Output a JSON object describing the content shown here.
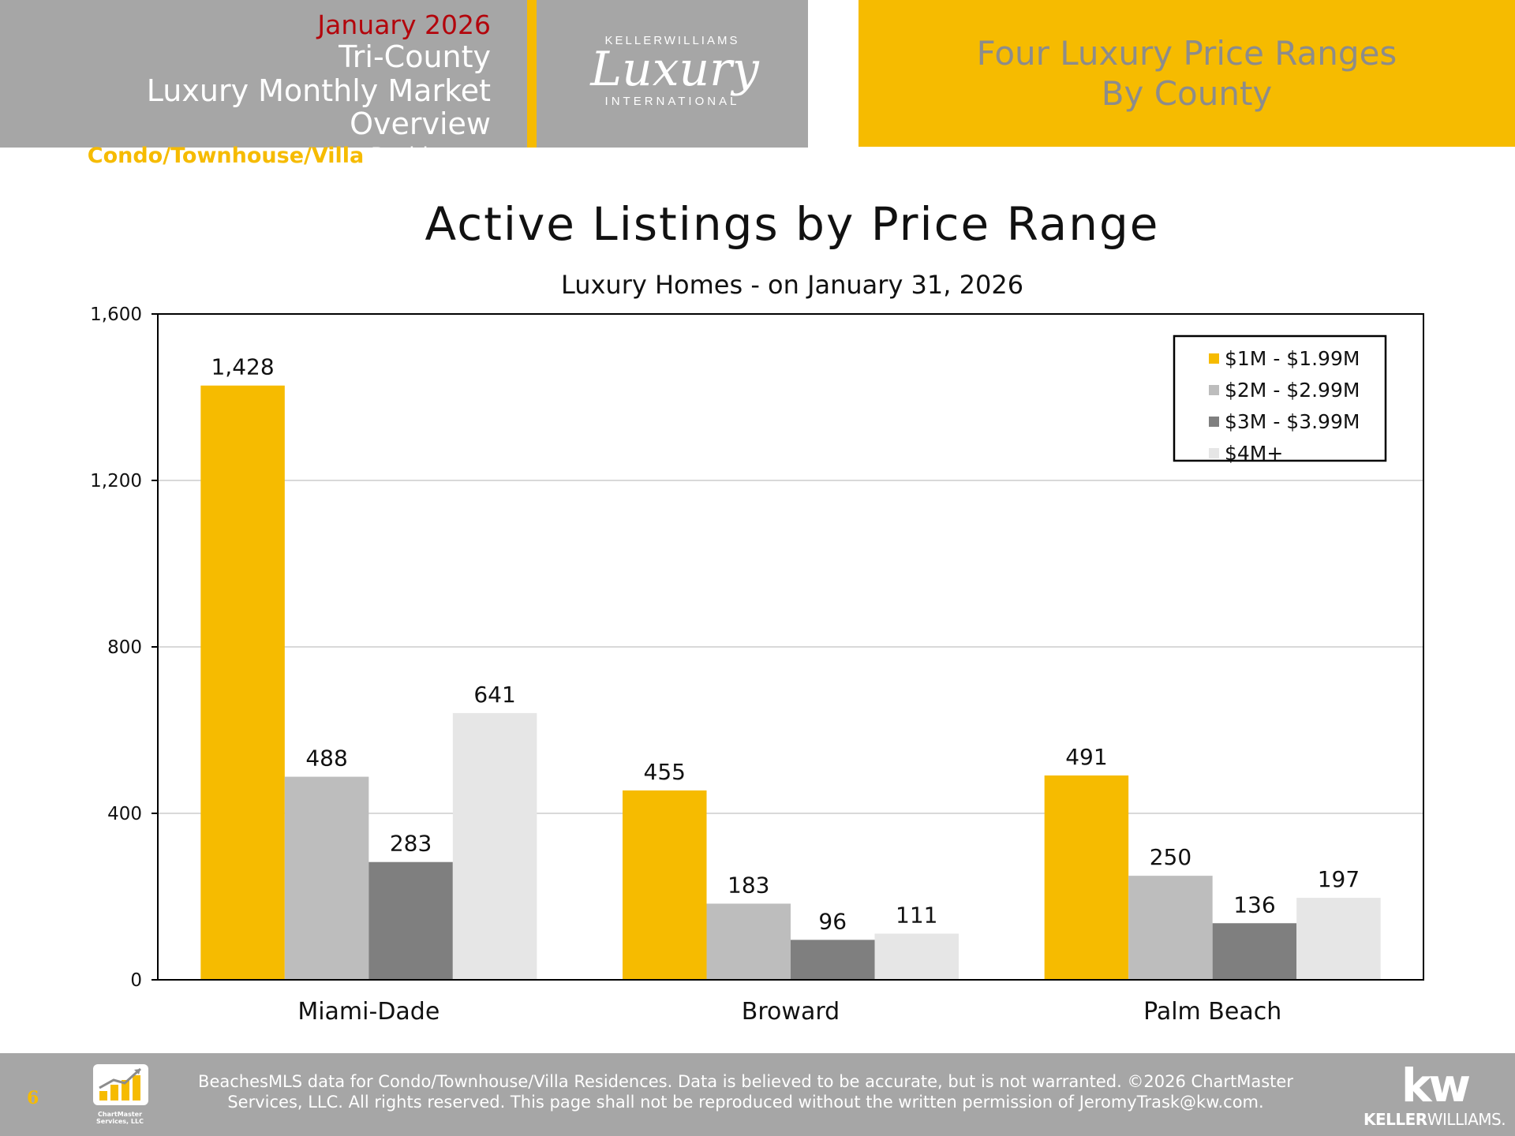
{
  "header": {
    "date": "January 2026",
    "region": "Tri-County",
    "report": "Luxury Monthly Market Overview",
    "property_type": "Condo/Townhouse/Villa",
    "property_suffix": "Residences",
    "logo": {
      "brand_top": "KELLERWILLIAMS",
      "brand_script": "Luxury",
      "brand_bottom": "INTERNATIONAL"
    },
    "section_title_line1": "Four Luxury Price Ranges",
    "section_title_line2": "By County"
  },
  "colors": {
    "gold": "#f6bb00",
    "header_gray": "#a6a6a6",
    "date_red": "#b3050c",
    "series": [
      "#f6bb00",
      "#bdbdbd",
      "#7f7f7f",
      "#e6e6e6"
    ]
  },
  "chart_data": {
    "type": "bar",
    "title": "Active Listings by Price Range",
    "subtitle": "Luxury Homes - on January 31, 2026",
    "categories": [
      "Miami-Dade",
      "Broward",
      "Palm Beach"
    ],
    "series": [
      {
        "name": "$1M - $1.99M",
        "values": [
          1428,
          455,
          491
        ]
      },
      {
        "name": "$2M - $2.99M",
        "values": [
          488,
          183,
          250
        ]
      },
      {
        "name": "$3M - $3.99M",
        "values": [
          283,
          96,
          136
        ]
      },
      {
        "name": "$4M+",
        "values": [
          641,
          111,
          197
        ]
      }
    ],
    "yticks": [
      0,
      400,
      800,
      1200,
      1600
    ],
    "ytick_labels": [
      "0",
      "400",
      "800",
      "1,200",
      "1,600"
    ],
    "ylim": [
      0,
      1600
    ],
    "grid": true,
    "legend": "top-right",
    "data_labels": true
  },
  "footer": {
    "page_number": "6",
    "chartmaster_line1": "ChartMaster",
    "chartmaster_line2": "Services, LLC",
    "disclaimer_line1": "BeachesMLS data for Condo/Townhouse/Villa Residences.  Data is believed to be accurate, but is not warranted.   ©2026  ChartMaster",
    "disclaimer_line2": "Services, LLC.  All rights reserved. This page shall not be reproduced without the written permission of JeromyTrask@kw.com.",
    "kw_mark": "kw",
    "kw_word_bold": "KELLER",
    "kw_word_rest": "WILLIAMS."
  }
}
